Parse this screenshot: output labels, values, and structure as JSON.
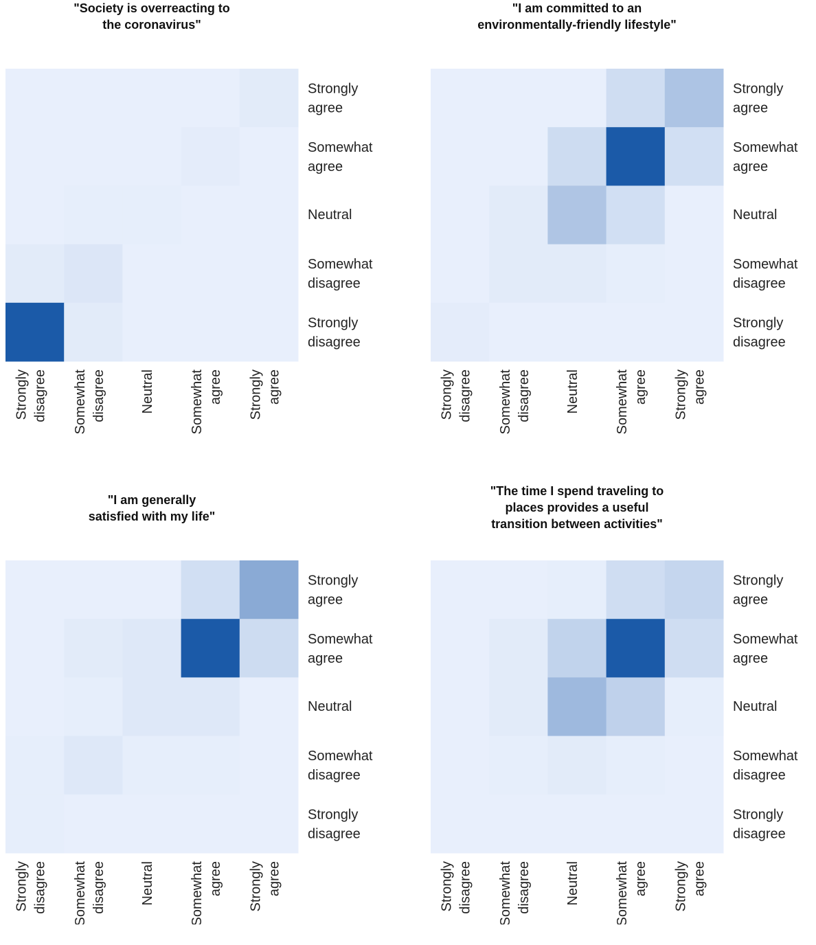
{
  "categories": [
    "Strongly disagree",
    "Somewhat disagree",
    "Neutral",
    "Somewhat agree",
    "Strongly agree"
  ],
  "chart_data": [
    {
      "type": "heatmap",
      "title": "\"Society is overreacting to the coronavirus\"",
      "title_lines": [
        "\"Society is overreacting to",
        "the coronavirus\""
      ],
      "row_order": "top-to-bottom: Strongly agree, Somewhat agree, Neutral, Somewhat disagree, Strongly disagree",
      "col_order": "left-to-right: Strongly disagree, Somewhat disagree, Neutral, Somewhat agree, Strongly agree",
      "matrix": [
        [
          0,
          0,
          0,
          0,
          3
        ],
        [
          0,
          0,
          0,
          2,
          0
        ],
        [
          0,
          1,
          1,
          0,
          0
        ],
        [
          3,
          6,
          0,
          0,
          0
        ],
        [
          100,
          3,
          0,
          0,
          0
        ]
      ]
    },
    {
      "type": "heatmap",
      "title": "\"I am committed to an environmentally-friendly lifestyle\"",
      "title_lines": [
        "\"I am committed to an",
        "environmentally-friendly lifestyle\""
      ],
      "row_order": "top-to-bottom: Strongly agree, Somewhat agree, Neutral, Somewhat disagree, Strongly disagree",
      "col_order": "left-to-right: Strongly disagree, Somewhat disagree, Neutral, Somewhat agree, Strongly agree",
      "matrix": [
        [
          0,
          0,
          0,
          12,
          29
        ],
        [
          0,
          0,
          13,
          100,
          11
        ],
        [
          0,
          3,
          28,
          11,
          0
        ],
        [
          0,
          3,
          3,
          1,
          0
        ],
        [
          2,
          0,
          0,
          0,
          0
        ]
      ]
    },
    {
      "type": "heatmap",
      "title": "\"I am generally satisfied with my life\"",
      "title_lines": [
        "\"I am generally",
        "satisfied with my life\""
      ],
      "row_order": "top-to-bottom: Strongly agree, Somewhat agree, Neutral, Somewhat disagree, Strongly disagree",
      "col_order": "left-to-right: Strongly disagree, Somewhat disagree, Neutral, Somewhat agree, Strongly agree",
      "matrix": [
        [
          0,
          0,
          0,
          11,
          46
        ],
        [
          0,
          3,
          5,
          100,
          13
        ],
        [
          0,
          1,
          5,
          5,
          0
        ],
        [
          1,
          5,
          1,
          1,
          0
        ],
        [
          1,
          0,
          0,
          0,
          0
        ]
      ]
    },
    {
      "type": "heatmap",
      "title": "\"The time I spend traveling to places provides a useful transition between activities\"",
      "title_lines": [
        "\"The time I spend traveling to",
        "places provides a useful",
        "transition between activities\""
      ],
      "row_order": "top-to-bottom: Strongly agree, Somewhat agree, Neutral, Somewhat disagree, Strongly disagree",
      "col_order": "left-to-right: Strongly disagree, Somewhat disagree, Neutral, Somewhat agree, Strongly agree",
      "matrix": [
        [
          0,
          0,
          1,
          12,
          17
        ],
        [
          0,
          3,
          19,
          100,
          12
        ],
        [
          0,
          3,
          36,
          20,
          1
        ],
        [
          0,
          1,
          3,
          1,
          0
        ],
        [
          0,
          0,
          0,
          0,
          0
        ]
      ]
    }
  ]
}
